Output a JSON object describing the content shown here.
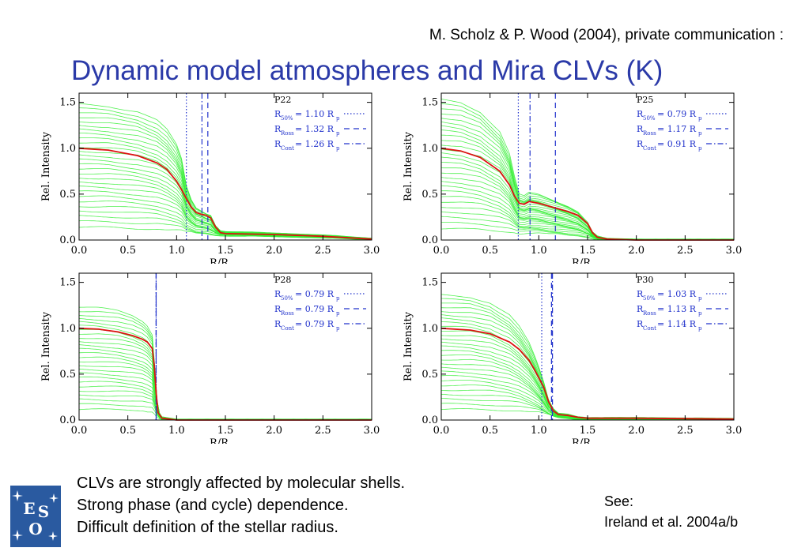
{
  "header": {
    "credit": "M. Scholz & P. Wood (2004), private communication :",
    "title": "Dynamic model atmospheres and Mira CLVs (K)"
  },
  "colors": {
    "title": "#2b3aa8",
    "model": "#33ee33",
    "mean": "#dd1111",
    "radius": "#2233cc",
    "logo": "#2a5aa0"
  },
  "chart_data": [
    {
      "type": "line",
      "model": "P22",
      "xlabel": "R/R",
      "xlabel_sub": "p",
      "ylabel": "Rel. Intensity",
      "xlim": [
        0,
        3
      ],
      "ylim": [
        0,
        1.6
      ],
      "xticks": [
        "0.0",
        "0.5",
        "1.0",
        "1.5",
        "2.0",
        "2.5",
        "3.0"
      ],
      "yticks": [
        "0.0",
        "0.5",
        "1.0",
        "1.5"
      ],
      "legend": [
        {
          "sub": "50%",
          "text": "= 1.10 R",
          "tail": "p",
          "value": 1.1,
          "style": "dotted"
        },
        {
          "sub": "Ross",
          "text": "= 1.32 R",
          "tail": "p",
          "value": 1.32,
          "style": "dashed"
        },
        {
          "sub": "Cont",
          "text": "= 1.26 R",
          "tail": "p",
          "value": 1.26,
          "style": "dashdot"
        }
      ],
      "legend_position": "top-right",
      "mean_curve": {
        "x": [
          0,
          0.3,
          0.6,
          0.8,
          0.9,
          1.0,
          1.05,
          1.1,
          1.15,
          1.2,
          1.25,
          1.3,
          1.35,
          1.4,
          1.45,
          1.5,
          2.0,
          2.5,
          3.0
        ],
        "y": [
          1.0,
          0.98,
          0.92,
          0.84,
          0.77,
          0.64,
          0.55,
          0.45,
          0.36,
          0.3,
          0.28,
          0.27,
          0.24,
          0.14,
          0.08,
          0.07,
          0.06,
          0.04,
          0.01
        ]
      },
      "envelope": {
        "x": [
          0,
          0.3,
          0.6,
          0.8,
          0.9,
          1.0,
          1.05,
          1.1,
          1.15,
          1.2,
          1.25,
          1.3,
          1.35,
          1.4,
          1.45,
          1.5,
          2.0,
          2.5,
          3.0
        ],
        "y_high": [
          1.5,
          1.48,
          1.42,
          1.32,
          1.22,
          1.05,
          0.9,
          0.6,
          0.45,
          0.36,
          0.33,
          0.3,
          0.28,
          0.16,
          0.1,
          0.09,
          0.07,
          0.05,
          0.01
        ],
        "y_low": [
          0.1,
          0.1,
          0.09,
          0.09,
          0.08,
          0.08,
          0.08,
          0.07,
          0.07,
          0.06,
          0.06,
          0.06,
          0.05,
          0.05,
          0.05,
          0.05,
          0.04,
          0.03,
          0.01
        ]
      },
      "curve_count": 28
    },
    {
      "type": "line",
      "model": "P25",
      "xlabel": "R/R",
      "xlabel_sub": "",
      "ylabel": "Rel. Intensity",
      "xlim": [
        0,
        3
      ],
      "ylim": [
        0,
        1.6
      ],
      "xticks": [
        "0.0",
        "0.5",
        "1.0",
        "1.5",
        "2.0",
        "2.5",
        "3.0"
      ],
      "yticks": [
        "0.0",
        "0.5",
        "1.0",
        "1.5"
      ],
      "legend": [
        {
          "sub": "50%",
          "text": "= 0.79 R",
          "tail": "p",
          "value": 0.79,
          "style": "dotted"
        },
        {
          "sub": "Ross",
          "text": "= 1.17 R",
          "tail": "p",
          "value": 1.17,
          "style": "dashed"
        },
        {
          "sub": "Cont",
          "text": "= 0.91 R",
          "tail": "p",
          "value": 0.91,
          "style": "dashdot"
        }
      ],
      "legend_position": "top-right",
      "mean_curve": {
        "x": [
          0,
          0.2,
          0.4,
          0.6,
          0.7,
          0.75,
          0.8,
          0.85,
          0.9,
          1.0,
          1.1,
          1.2,
          1.3,
          1.4,
          1.5,
          1.55,
          1.6,
          1.7,
          2.0,
          3.0
        ],
        "y": [
          1.0,
          0.97,
          0.9,
          0.75,
          0.6,
          0.48,
          0.4,
          0.39,
          0.42,
          0.4,
          0.37,
          0.34,
          0.31,
          0.27,
          0.18,
          0.08,
          0.03,
          0.01,
          0.0,
          0.0
        ]
      },
      "envelope": {
        "x": [
          0,
          0.2,
          0.4,
          0.6,
          0.7,
          0.75,
          0.8,
          0.85,
          0.9,
          1.0,
          1.1,
          1.2,
          1.3,
          1.4,
          1.5,
          1.55,
          1.6,
          1.7,
          2.0,
          3.0
        ],
        "y_high": [
          1.55,
          1.52,
          1.42,
          1.2,
          0.95,
          0.7,
          0.5,
          0.48,
          0.52,
          0.5,
          0.46,
          0.42,
          0.38,
          0.32,
          0.2,
          0.09,
          0.04,
          0.01,
          0.0,
          0.0
        ],
        "y_low": [
          0.08,
          0.08,
          0.08,
          0.07,
          0.07,
          0.07,
          0.06,
          0.06,
          0.06,
          0.06,
          0.05,
          0.05,
          0.04,
          0.04,
          0.03,
          0.02,
          0.01,
          0.0,
          0.0,
          0.0
        ]
      },
      "curve_count": 28
    },
    {
      "type": "line",
      "model": "P28",
      "xlabel": "R/R",
      "xlabel_sub": "p",
      "ylabel": "Rel. Intensity",
      "xlim": [
        0,
        3
      ],
      "ylim": [
        0,
        1.6
      ],
      "xticks": [
        "0.0",
        "0.5",
        "1.0",
        "1.5",
        "2.0",
        "2.5",
        "3.0"
      ],
      "yticks": [
        "0.0",
        "0.5",
        "1.0",
        "1.5"
      ],
      "legend": [
        {
          "sub": "50%",
          "text": "= 0.79 R",
          "tail": "p",
          "value": 0.79,
          "style": "dotted"
        },
        {
          "sub": "Ross",
          "text": "= 0.79 R",
          "tail": "p",
          "value": 0.79,
          "style": "dashed"
        },
        {
          "sub": "Cont",
          "text": "= 0.79 R",
          "tail": "p",
          "value": 0.79,
          "style": "dashdot"
        }
      ],
      "legend_position": "top-right",
      "mean_curve": {
        "x": [
          0,
          0.2,
          0.4,
          0.55,
          0.65,
          0.7,
          0.75,
          0.77,
          0.79,
          0.81,
          0.85,
          1.0,
          2.0,
          3.0
        ],
        "y": [
          1.0,
          0.99,
          0.96,
          0.92,
          0.88,
          0.85,
          0.78,
          0.6,
          0.3,
          0.08,
          0.02,
          0.0,
          0.0,
          0.0
        ]
      },
      "envelope": {
        "x": [
          0,
          0.2,
          0.4,
          0.55,
          0.65,
          0.7,
          0.75,
          0.77,
          0.79,
          0.81,
          0.85,
          1.0,
          2.0,
          3.0
        ],
        "y_high": [
          1.25,
          1.24,
          1.21,
          1.16,
          1.1,
          1.05,
          0.95,
          0.7,
          0.35,
          0.1,
          0.03,
          0.0,
          0.0,
          0.0
        ],
        "y_low": [
          0.08,
          0.08,
          0.08,
          0.08,
          0.08,
          0.07,
          0.07,
          0.06,
          0.04,
          0.02,
          0.01,
          0.0,
          0.0,
          0.0
        ]
      },
      "curve_count": 26
    },
    {
      "type": "line",
      "model": "P30",
      "xlabel": "R/R",
      "xlabel_sub": "p",
      "ylabel": "Rel. Intensity",
      "xlim": [
        0,
        3
      ],
      "ylim": [
        0,
        1.6
      ],
      "xticks": [
        "0.0",
        "0.5",
        "1.0",
        "1.5",
        "2.0",
        "2.5",
        "3.0"
      ],
      "yticks": [
        "0.0",
        "0.5",
        "1.0",
        "1.5"
      ],
      "legend": [
        {
          "sub": "50%",
          "text": "= 1.03 R",
          "tail": "p",
          "value": 1.03,
          "style": "dotted"
        },
        {
          "sub": "Ross",
          "text": "= 1.13 R",
          "tail": "p",
          "value": 1.13,
          "style": "dashed"
        },
        {
          "sub": "Cont",
          "text": "= 1.14 R",
          "tail": "p",
          "value": 1.14,
          "style": "dashdot"
        }
      ],
      "legend_position": "top-right",
      "mean_curve": {
        "x": [
          0,
          0.3,
          0.5,
          0.7,
          0.8,
          0.9,
          0.95,
          1.0,
          1.05,
          1.1,
          1.15,
          1.2,
          1.3,
          1.4,
          1.5,
          2.0,
          3.0
        ],
        "y": [
          1.0,
          0.98,
          0.94,
          0.85,
          0.77,
          0.65,
          0.56,
          0.46,
          0.36,
          0.2,
          0.1,
          0.06,
          0.05,
          0.03,
          0.02,
          0.02,
          0.01
        ]
      },
      "envelope": {
        "x": [
          0,
          0.3,
          0.5,
          0.7,
          0.8,
          0.9,
          0.95,
          1.0,
          1.05,
          1.1,
          1.15,
          1.2,
          1.3,
          1.4,
          1.5,
          2.0,
          3.0
        ],
        "y_high": [
          1.38,
          1.36,
          1.3,
          1.16,
          1.03,
          0.85,
          0.72,
          0.58,
          0.42,
          0.22,
          0.12,
          0.07,
          0.06,
          0.03,
          0.02,
          0.02,
          0.01
        ],
        "y_low": [
          0.08,
          0.08,
          0.08,
          0.08,
          0.08,
          0.07,
          0.07,
          0.07,
          0.06,
          0.05,
          0.04,
          0.03,
          0.02,
          0.01,
          0.01,
          0.01,
          0.0
        ]
      },
      "curve_count": 28
    }
  ],
  "notes": {
    "bullets": [
      "CLVs are strongly affected by molecular shells.",
      "Strong phase (and cycle) dependence.",
      "Difficult definition of the stellar radius."
    ],
    "see_label": "See:",
    "see_ref": "Ireland et al. 2004a/b"
  },
  "logo": {
    "letters": [
      "E",
      "S",
      "O"
    ]
  }
}
